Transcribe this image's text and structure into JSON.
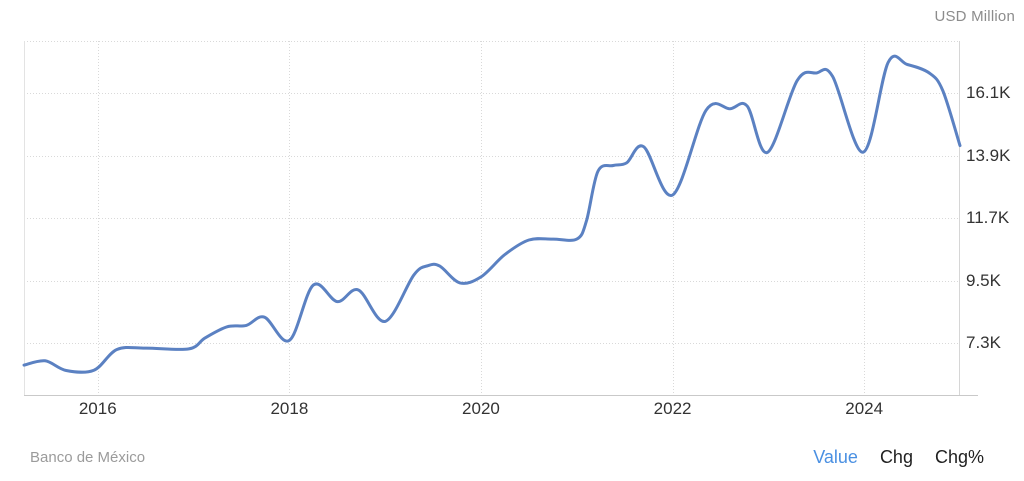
{
  "header": {
    "unit_label": "USD Million"
  },
  "footer": {
    "source": "Banco de México",
    "links": [
      {
        "label": "Value",
        "active": true
      },
      {
        "label": "Chg",
        "active": false
      },
      {
        "label": "Chg%",
        "active": false
      }
    ]
  },
  "colors": {
    "line": "#5b81c2",
    "grid": "#d9d9d9",
    "border_left": "#e3e3e3",
    "border_right": "#d6d6d6",
    "border_bottom": "#c9c9c9",
    "axis_text": "#333333",
    "muted_text": "#9b9b9b",
    "active_link": "#4a90e2",
    "link_text": "#1f1f1f"
  },
  "chart_data": {
    "type": "line",
    "title": "",
    "ylabel": "USD Million",
    "source": "Banco de México",
    "legend_position": "bottom-right",
    "grid": "dotted",
    "x_domain": [
      2015.23,
      2025.0
    ],
    "y_domain": [
      5430,
      17950
    ],
    "x_ticks": [
      {
        "label": "2016",
        "value": 2016
      },
      {
        "label": "2018",
        "value": 2018
      },
      {
        "label": "2020",
        "value": 2020
      },
      {
        "label": "2022",
        "value": 2022
      },
      {
        "label": "2024",
        "value": 2024
      }
    ],
    "y_ticks": [
      {
        "label": "16.1K",
        "value": 16100
      },
      {
        "label": "13.9K",
        "value": 13900
      },
      {
        "label": "11.7K",
        "value": 11700
      },
      {
        "label": "9.5K",
        "value": 9500
      },
      {
        "label": "7.3K",
        "value": 7300
      }
    ],
    "series": [
      {
        "name": "Value",
        "unit": "USD Million",
        "points": [
          [
            2015.23,
            6520
          ],
          [
            2015.45,
            6670
          ],
          [
            2015.67,
            6330
          ],
          [
            2015.96,
            6340
          ],
          [
            2016.2,
            7070
          ],
          [
            2016.5,
            7120
          ],
          [
            2016.95,
            7090
          ],
          [
            2017.12,
            7480
          ],
          [
            2017.35,
            7870
          ],
          [
            2017.55,
            7920
          ],
          [
            2017.74,
            8210
          ],
          [
            2018.0,
            7390
          ],
          [
            2018.25,
            9340
          ],
          [
            2018.5,
            8760
          ],
          [
            2018.72,
            9170
          ],
          [
            2019.0,
            8060
          ],
          [
            2019.3,
            9700
          ],
          [
            2019.45,
            10030
          ],
          [
            2019.57,
            10010
          ],
          [
            2019.78,
            9420
          ],
          [
            2020.0,
            9630
          ],
          [
            2020.25,
            10420
          ],
          [
            2020.5,
            10930
          ],
          [
            2020.75,
            10965
          ],
          [
            2021.0,
            10965
          ],
          [
            2021.1,
            11600
          ],
          [
            2021.22,
            13350
          ],
          [
            2021.38,
            13560
          ],
          [
            2021.52,
            13650
          ],
          [
            2021.7,
            14220
          ],
          [
            2022.0,
            12520
          ],
          [
            2022.35,
            15510
          ],
          [
            2022.6,
            15560
          ],
          [
            2022.78,
            15650
          ],
          [
            2022.99,
            14020
          ],
          [
            2023.3,
            16550
          ],
          [
            2023.5,
            16820
          ],
          [
            2023.67,
            16700
          ],
          [
            2023.99,
            14030
          ],
          [
            2024.25,
            17190
          ],
          [
            2024.45,
            17120
          ],
          [
            2024.68,
            16820
          ],
          [
            2024.82,
            16200
          ],
          [
            2025.0,
            14260
          ]
        ]
      }
    ]
  }
}
